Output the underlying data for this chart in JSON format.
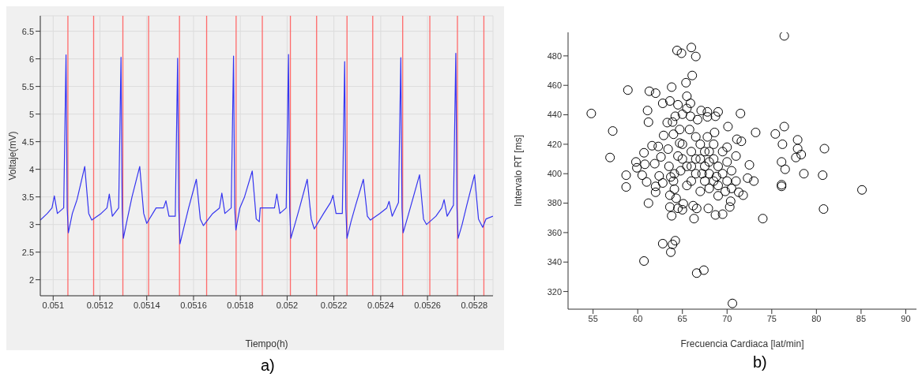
{
  "chart_data": [
    {
      "type": "line",
      "xlabel": "Tiempo(h)",
      "ylabel": "Voltaje(mV)",
      "annotations": [
        "a)"
      ],
      "x": [
        0.050945,
        0.050975,
        0.050995,
        0.051005,
        0.051018,
        0.051045,
        0.051055,
        0.05106,
        0.051065,
        0.051082,
        0.051102,
        0.051135,
        0.051152,
        0.051165,
        0.051205,
        0.05123,
        0.05124,
        0.051253,
        0.05128,
        0.05129,
        0.051295,
        0.0513,
        0.051317,
        0.051337,
        0.05137,
        0.051387,
        0.0514,
        0.05144,
        0.051472,
        0.051482,
        0.051495,
        0.051522,
        0.051532,
        0.051537,
        0.051542,
        0.051559,
        0.051579,
        0.051612,
        0.051629,
        0.051642,
        0.051682,
        0.051711,
        0.051721,
        0.051734,
        0.051761,
        0.051771,
        0.051776,
        0.051781,
        0.051798,
        0.051818,
        0.051851,
        0.051868,
        0.051881,
        0.051885,
        0.051946,
        0.051956,
        0.051969,
        0.051996,
        0.052006,
        0.052011,
        0.052016,
        0.052033,
        0.052053,
        0.052086,
        0.052103,
        0.052116,
        0.052156,
        0.052186,
        0.052196,
        0.052209,
        0.052236,
        0.052246,
        0.052251,
        0.052256,
        0.052273,
        0.052293,
        0.052326,
        0.052343,
        0.052356,
        0.052396,
        0.052426,
        0.052436,
        0.052449,
        0.052476,
        0.052486,
        0.052491,
        0.052496,
        0.052513,
        0.052533,
        0.052566,
        0.052583,
        0.052596,
        0.052636,
        0.052661,
        0.052671,
        0.052684,
        0.052711,
        0.052721,
        0.052726,
        0.052731,
        0.052748,
        0.052768,
        0.052801,
        0.052818,
        0.052836,
        0.05285,
        0.05288
      ],
      "series": [
        {
          "color": "#3535f0",
          "values": [
            3.08,
            3.2,
            3.3,
            3.52,
            3.2,
            3.3,
            6.07,
            3.3,
            2.85,
            3.2,
            3.45,
            4.05,
            3.2,
            3.08,
            3.2,
            3.3,
            3.55,
            3.15,
            3.3,
            6.03,
            3.3,
            2.75,
            3.1,
            3.5,
            4.05,
            3.2,
            3.02,
            3.3,
            3.3,
            3.43,
            3.15,
            3.15,
            6.01,
            3.3,
            2.65,
            2.95,
            3.3,
            3.82,
            3.1,
            2.98,
            3.2,
            3.3,
            3.57,
            3.2,
            3.3,
            6.05,
            3.3,
            2.9,
            3.3,
            3.5,
            3.97,
            3.1,
            3.05,
            3.3,
            3.3,
            3.55,
            3.2,
            3.3,
            6.08,
            3.3,
            2.75,
            3.0,
            3.3,
            3.82,
            3.1,
            2.92,
            3.2,
            3.4,
            3.53,
            3.2,
            3.2,
            5.95,
            3.3,
            2.75,
            3.05,
            3.35,
            3.82,
            3.15,
            3.08,
            3.2,
            3.3,
            3.42,
            3.15,
            3.4,
            6.02,
            3.3,
            2.85,
            3.1,
            3.4,
            3.9,
            3.1,
            3.0,
            3.15,
            3.3,
            3.45,
            3.15,
            3.35,
            6.1,
            3.3,
            2.75,
            3.0,
            3.35,
            3.9,
            3.1,
            2.95,
            3.1,
            3.15
          ]
        }
      ],
      "xlim": [
        0.050945,
        0.05288
      ],
      "xticks": [
        0.051,
        0.0512,
        0.0514,
        0.0516,
        0.0518,
        0.052,
        0.0522,
        0.0524,
        0.0526,
        0.0528
      ],
      "ylim": [
        1.71,
        6.78
      ],
      "yticks": [
        2,
        2.5,
        3,
        3.5,
        4,
        4.5,
        5,
        5.5,
        6,
        6.5
      ],
      "grid": true,
      "marker": "none",
      "line_style": "solid",
      "ref_lines": [
        {
          "axis": "x",
          "value": 0.051063,
          "color": "#ff6a6a"
        },
        {
          "axis": "x",
          "value": 0.051173,
          "color": "#ff6a6a"
        },
        {
          "axis": "x",
          "value": 0.051298,
          "color": "#ff6a6a"
        },
        {
          "axis": "x",
          "value": 0.051408,
          "color": "#ff6a6a"
        },
        {
          "axis": "x",
          "value": 0.05154,
          "color": "#ff6a6a"
        },
        {
          "axis": "x",
          "value": 0.051656,
          "color": "#ff6a6a"
        },
        {
          "axis": "x",
          "value": 0.051782,
          "color": "#ff6a6a"
        },
        {
          "axis": "x",
          "value": 0.051894,
          "color": "#ff6a6a"
        },
        {
          "axis": "x",
          "value": 0.052014,
          "color": "#ff6a6a"
        },
        {
          "axis": "x",
          "value": 0.052126,
          "color": "#ff6a6a"
        },
        {
          "axis": "x",
          "value": 0.052256,
          "color": "#ff6a6a"
        },
        {
          "axis": "x",
          "value": 0.052366,
          "color": "#ff6a6a"
        },
        {
          "axis": "x",
          "value": 0.052494,
          "color": "#ff6a6a"
        },
        {
          "axis": "x",
          "value": 0.05261,
          "color": "#ff6a6a"
        },
        {
          "axis": "x",
          "value": 0.052728,
          "color": "#ff6a6a"
        },
        {
          "axis": "x",
          "value": 0.052841,
          "color": "#ff6a6a"
        }
      ]
    },
    {
      "type": "scatter",
      "xlabel": "Frecuencia Cardiaca [lat/min]",
      "ylabel": "Intervalo RT [ms]",
      "annotations": [
        "b)"
      ],
      "x": [
        76.4,
        64.4,
        64.9,
        66.0,
        66.5,
        66.1,
        65.4,
        63.8,
        58.9,
        61.3,
        62.0,
        54.8,
        57.2,
        56.9,
        71.5,
        73.2,
        75.4,
        76.4,
        76.2,
        77.9,
        77.9,
        78.3,
        77.7,
        80.9,
        76.1,
        76.5,
        78.6,
        80.7,
        76.1,
        76.1,
        85.1,
        80.8,
        74.0,
        73.0,
        58.7,
        58.7,
        59.8,
        59.9,
        60.5,
        61.2,
        66.3,
        63.8,
        62.8,
        64.2,
        63.9,
        63.7,
        60.7,
        66.6,
        67.4,
        70.6,
        61.1,
        61.2,
        62.8,
        63.6,
        64.5,
        65.5,
        65.9,
        67.1,
        67.8,
        69.0,
        70.1,
        68.6,
        71.1,
        71.6,
        72.5,
        72.3,
        71.8,
        71.3,
        70.4,
        70.3,
        69.5,
        68.7,
        67.9,
        66.6,
        66.2,
        65.0,
        64.5,
        63.6,
        63.6,
        64.3,
        65.1,
        64.1,
        62.0,
        62.0,
        61.0,
        60.7,
        61.6,
        62.3,
        62.9,
        63.3,
        63.9,
        64.2,
        65.0,
        65.5,
        65.9,
        66.7,
        67.8,
        68.7,
        64.0,
        64.7,
        60.8,
        61.9,
        62.4,
        62.8,
        63.7,
        64.1,
        62.6,
        63.4,
        64.7,
        65,
        65.5,
        66,
        66.5,
        67,
        67,
        67.5,
        67.5,
        68,
        68,
        68,
        68.5,
        68.5,
        69,
        69,
        69.5,
        69.5,
        70,
        70,
        70.5,
        66,
        66.5,
        67,
        68.5,
        65,
        64.5,
        66,
        67.5,
        69,
        70.5,
        71,
        71,
        63.5,
        64,
        65.5,
        66.5,
        68,
        68.8,
        67.2,
        69.8,
        64.8,
        65.8,
        67.8,
        70
      ],
      "series": [
        {
          "color": "#000000",
          "values": [
            493.6,
            483.7,
            481.8,
            485.7,
            479.6,
            466.7,
            461.8,
            458.8,
            456.8,
            456,
            454.7,
            440.9,
            429,
            411,
            440.9,
            428,
            427,
            432,
            420,
            423,
            417,
            413,
            411,
            417,
            408,
            403,
            400,
            399,
            392.5,
            391.4,
            389,
            376,
            369.5,
            395,
            399,
            391,
            408,
            404,
            399,
            380,
            369.5,
            371.4,
            352.5,
            354.5,
            352,
            346.7,
            340.7,
            332.5,
            334.5,
            311.9,
            442.9,
            435,
            447.8,
            449.4,
            446.8,
            452.6,
            447.8,
            442.9,
            442,
            442,
            432,
            428,
            423.4,
            422,
            406,
            397,
            385.4,
            387.4,
            381.3,
            377.4,
            372.5,
            372,
            376.4,
            376.4,
            378.3,
            375.5,
            376.5,
            377.4,
            385.4,
            383.3,
            379.6,
            389.5,
            391.4,
            387.4,
            394.4,
            414.2,
            419,
            418.5,
            426,
            434.7,
            435.1,
            439,
            440.4,
            444.3,
            439,
            436.7,
            438.6,
            439,
            426.8,
            430,
            406.4,
            406.8,
            398.5,
            393.7,
            397.8,
            399.9,
            411.4,
            416.7,
            420.8,
            410,
            405,
            415,
            400,
            420,
            410,
            395,
            405,
            400,
            390,
            415,
            410,
            395,
            405,
            385,
            400,
            415,
            395,
            408,
            390,
            395,
            425,
            388,
            420,
            420,
            412,
            405,
            415,
            392,
            402,
            412,
            395,
            405,
            395,
            392,
            410,
            408,
            398,
            400,
            388,
            402,
            430,
            425,
            418
          ]
        }
      ],
      "xlim": [
        52.2,
        91.2
      ],
      "xticks": [
        55,
        60,
        65,
        70,
        75,
        80,
        85,
        90
      ],
      "ylim": [
        308,
        496
      ],
      "yticks": [
        320,
        340,
        360,
        380,
        400,
        420,
        440,
        460,
        480
      ],
      "marker": "circle"
    }
  ]
}
